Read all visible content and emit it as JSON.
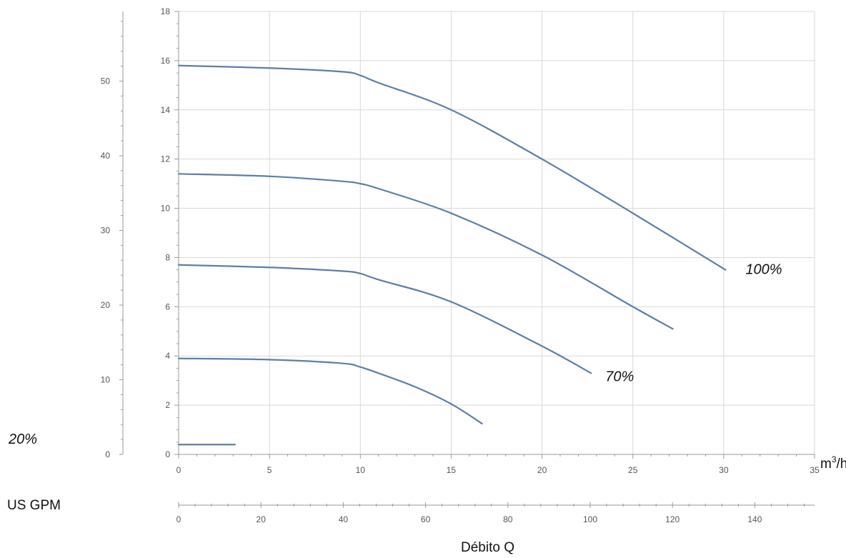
{
  "chart_data": {
    "type": "line",
    "x_unit_label": "m",
    "x_unit_sup": "3",
    "x_unit_suffix": "/h",
    "gpm_axis_label": "US GPM",
    "axis_caption": "Débito Q",
    "x_ticks": [
      "0",
      "5",
      "10",
      "15",
      "20",
      "25",
      "30",
      "35"
    ],
    "y_ticks": [
      "0",
      "2",
      "4",
      "6",
      "8",
      "10",
      "12",
      "14",
      "16",
      "18"
    ],
    "y2_ticks": [
      "0",
      "10",
      "20",
      "30",
      "40",
      "50"
    ],
    "gpm_ticks": [
      "0",
      "20",
      "40",
      "60",
      "80",
      "100",
      "120",
      "140"
    ],
    "xlim": [
      0,
      35
    ],
    "ylim": [
      0,
      18
    ],
    "grid": true,
    "colors": {
      "line": "#5b7fa8",
      "grid": "#d9d9d9",
      "axis": "#9a9a9a"
    },
    "series": [
      {
        "name": "100%",
        "x": [
          0,
          5,
          9,
          10,
          11,
          15,
          20,
          25,
          30.1
        ],
        "y": [
          15.8,
          15.7,
          15.55,
          15.4,
          15.1,
          14.0,
          12.0,
          9.8,
          7.5
        ]
      },
      {
        "x": [
          0,
          5,
          9,
          10,
          11,
          15,
          20,
          25,
          27.2
        ],
        "y": [
          11.4,
          11.3,
          11.1,
          11.0,
          10.8,
          9.8,
          8.1,
          6.0,
          5.1
        ]
      },
      {
        "name": "70%",
        "x": [
          0,
          5,
          9,
          10,
          11,
          15,
          20,
          22.7
        ],
        "y": [
          7.7,
          7.6,
          7.45,
          7.35,
          7.1,
          6.2,
          4.4,
          3.3
        ]
      },
      {
        "x": [
          0,
          5,
          9,
          10,
          11,
          13,
          15,
          16.7
        ],
        "y": [
          3.9,
          3.85,
          3.7,
          3.55,
          3.3,
          2.75,
          2.05,
          1.25
        ]
      },
      {
        "name": "20%",
        "x": [
          0,
          3.1
        ],
        "y": [
          0.4,
          0.4
        ]
      }
    ]
  }
}
